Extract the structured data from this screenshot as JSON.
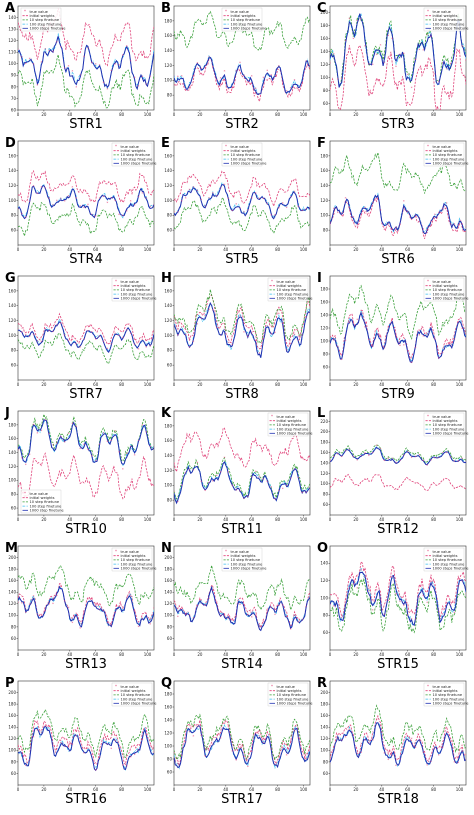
{
  "legend": [
    {
      "name": "true value",
      "color": "#e0457b",
      "style": "marker"
    },
    {
      "name": "initial weights",
      "color": "#e0457b",
      "style": "dashed"
    },
    {
      "name": "10 step finetune",
      "color": "#3aa03a",
      "style": "dashed"
    },
    {
      "name": "100 step finetune",
      "color": "#33bbee",
      "style": "dashdot"
    },
    {
      "name": "1000 steps finetune",
      "color": "#1f2fb0",
      "style": "solid"
    }
  ],
  "legend_alt": [
    {
      "name": "true value",
      "color": "#e0457b",
      "style": "marker"
    },
    {
      "name": "initial weights",
      "color": "#e0457b",
      "style": "dashed"
    },
    {
      "name": "10 step finetune",
      "color": "#3aa03a",
      "style": "dashed"
    },
    {
      "name": "100 step finetune",
      "color": "#33bbee",
      "style": "dashdot"
    },
    {
      "name": "1000 step finetune",
      "color": "#1f2fb0",
      "style": "solid"
    }
  ],
  "xticks": [
    0,
    20,
    40,
    60,
    80,
    100
  ],
  "chart_data": [
    {
      "panel": "A",
      "title": "STR1",
      "type": "line",
      "ylim": [
        60,
        150
      ],
      "yticks": [
        60,
        70,
        80,
        90,
        100,
        110,
        120,
        130,
        140
      ],
      "legend": "top-left",
      "base": 95,
      "amp": 12,
      "init_off": 22,
      "ten_off": -18,
      "seed": 1
    },
    {
      "panel": "B",
      "title": "STR2",
      "type": "line",
      "ylim": [
        60,
        200
      ],
      "yticks": [
        80,
        100,
        120,
        140,
        160,
        180
      ],
      "legend": "top-center",
      "base": 100,
      "amp": 15,
      "init_off": -5,
      "ten_off": 60,
      "seed": 2
    },
    {
      "panel": "C",
      "title": "STR3",
      "type": "line",
      "ylim": [
        50,
        210
      ],
      "yticks": [
        60,
        80,
        100,
        120,
        140,
        160,
        180,
        200
      ],
      "legend": "top-right",
      "base": 130,
      "amp": 30,
      "init_off": -40,
      "ten_off": 5,
      "seed": 3
    },
    {
      "panel": "D",
      "title": "STR4",
      "type": "line",
      "ylim": [
        40,
        180
      ],
      "yticks": [
        60,
        80,
        100,
        120,
        140,
        160
      ],
      "legend": "top-right",
      "base": 95,
      "amp": 12,
      "init_off": 20,
      "ten_off": -22,
      "seed": 4
    },
    {
      "panel": "E",
      "title": "STR5",
      "type": "line",
      "ylim": [
        40,
        180
      ],
      "yticks": [
        60,
        80,
        100,
        120,
        140,
        160
      ],
      "legend": "top-center",
      "base": 95,
      "amp": 12,
      "init_off": 18,
      "ten_off": -20,
      "seed": 5
    },
    {
      "panel": "F",
      "title": "STR6",
      "type": "line",
      "ylim": [
        60,
        200
      ],
      "yticks": [
        80,
        100,
        120,
        140,
        160,
        180
      ],
      "legend": "top-right",
      "base": 95,
      "amp": 14,
      "init_off": -3,
      "ten_off": 55,
      "seed": 6
    },
    {
      "panel": "G",
      "title": "STR7",
      "type": "line",
      "ylim": [
        40,
        180
      ],
      "yticks": [
        60,
        80,
        100,
        120,
        140,
        160
      ],
      "legend": "top-right",
      "base": 95,
      "amp": 10,
      "init_off": 8,
      "ten_off": -15,
      "seed": 7
    },
    {
      "panel": "H",
      "title": "STR8",
      "type": "line",
      "ylim": [
        40,
        180
      ],
      "yticks": [
        60,
        80,
        100,
        120,
        140,
        160
      ],
      "legend": "top-right",
      "base": 100,
      "amp": 18,
      "init_off": 10,
      "ten_off": 15,
      "seed": 8
    },
    {
      "panel": "I",
      "title": "STR9",
      "type": "line",
      "ylim": [
        40,
        200
      ],
      "yticks": [
        60,
        80,
        100,
        120,
        140,
        160,
        180
      ],
      "legend": "top-right",
      "base": 100,
      "amp": 18,
      "init_off": 5,
      "ten_off": 40,
      "seed": 9
    },
    {
      "panel": "J",
      "title": "STR10",
      "type": "line",
      "ylim": [
        50,
        200
      ],
      "yticks": [
        60,
        80,
        100,
        120,
        140,
        160,
        180
      ],
      "legend": "bottom-left",
      "base": 150,
      "amp": 18,
      "init_off": -50,
      "ten_off": 5,
      "seed": 10
    },
    {
      "panel": "K",
      "title": "STR11",
      "type": "line",
      "ylim": [
        60,
        200
      ],
      "yticks": [
        80,
        100,
        120,
        140,
        160,
        180
      ],
      "legend": "top-right",
      "base": 100,
      "amp": 14,
      "init_off": 45,
      "ten_off": 5,
      "seed": 11
    },
    {
      "panel": "L",
      "title": "STR12",
      "type": "line",
      "ylim": [
        40,
        240
      ],
      "yticks": [
        60,
        80,
        100,
        120,
        140,
        160,
        180,
        200,
        220
      ],
      "legend": "top-right",
      "base": 150,
      "amp": 8,
      "init_off": -50,
      "ten_off": 5,
      "seed": 12
    },
    {
      "panel": "M",
      "title": "STR13",
      "type": "line",
      "ylim": [
        40,
        220
      ],
      "yticks": [
        60,
        80,
        100,
        120,
        140,
        160,
        180,
        200
      ],
      "legend": "top-right",
      "base": 105,
      "amp": 18,
      "init_off": 5,
      "ten_off": 40,
      "seed": 13
    },
    {
      "panel": "N",
      "title": "STR14",
      "type": "line",
      "ylim": [
        40,
        220
      ],
      "yticks": [
        60,
        80,
        100,
        120,
        140,
        160,
        180,
        200
      ],
      "legend": "top-center",
      "base": 100,
      "amp": 18,
      "init_off": 5,
      "ten_off": 35,
      "seed": 14
    },
    {
      "panel": "O",
      "title": "STR15",
      "type": "line",
      "ylim": [
        40,
        160
      ],
      "yticks": [
        60,
        80,
        100,
        120,
        140
      ],
      "legend": "top-right",
      "base": 95,
      "amp": 18,
      "init_off": 8,
      "ten_off": -10,
      "seed": 15
    },
    {
      "panel": "P",
      "title": "STR16",
      "type": "line",
      "ylim": [
        40,
        220
      ],
      "yticks": [
        60,
        80,
        100,
        120,
        140,
        160,
        180,
        200
      ],
      "legend": "top-right",
      "base": 100,
      "amp": 20,
      "init_off": 10,
      "ten_off": 25,
      "seed": 16
    },
    {
      "panel": "Q",
      "title": "STR17",
      "type": "line",
      "ylim": [
        40,
        200
      ],
      "yticks": [
        60,
        80,
        100,
        120,
        140,
        160,
        180
      ],
      "legend": "top-right",
      "base": 95,
      "amp": 20,
      "init_off": 8,
      "ten_off": 15,
      "seed": 17
    },
    {
      "panel": "R",
      "title": "STR18",
      "type": "line",
      "ylim": [
        40,
        220
      ],
      "yticks": [
        60,
        80,
        100,
        120,
        140,
        160,
        180,
        200
      ],
      "legend": "top-right",
      "base": 100,
      "amp": 20,
      "init_off": 8,
      "ten_off": 25,
      "seed": 18
    }
  ]
}
